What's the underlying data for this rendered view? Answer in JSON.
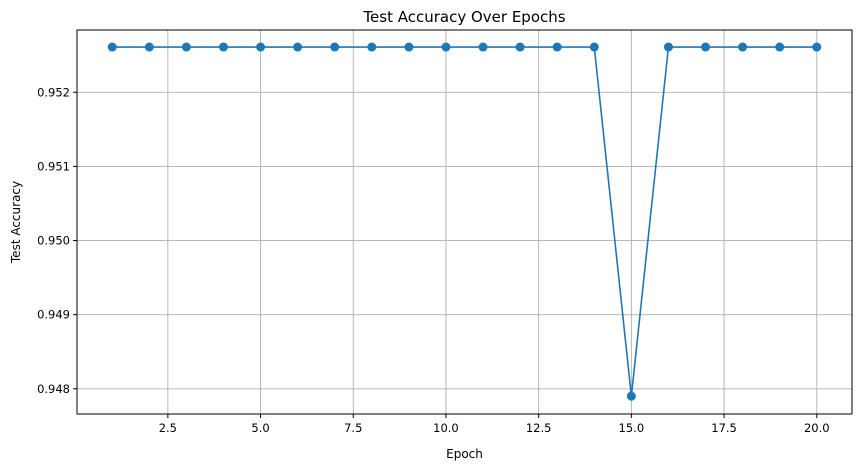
{
  "chart_data": {
    "type": "line",
    "title": "Test Accuracy Over Epochs",
    "xlabel": "Epoch",
    "ylabel": "Test Accuracy",
    "xlim": [
      0.05,
      20.95
    ],
    "ylim": [
      0.94766,
      0.95284
    ],
    "xticks": [
      2.5,
      5.0,
      7.5,
      10.0,
      12.5,
      15.0,
      17.5,
      20.0
    ],
    "xtick_labels": [
      "2.5",
      "5.0",
      "7.5",
      "10.0",
      "12.5",
      "15.0",
      "17.5",
      "20.0"
    ],
    "yticks": [
      0.948,
      0.949,
      0.95,
      0.951,
      0.952
    ],
    "ytick_labels": [
      "0.948",
      "0.949",
      "0.950",
      "0.951",
      "0.952"
    ],
    "grid": true,
    "series": [
      {
        "color": "#1f77b4",
        "marker": "circle",
        "x": [
          1,
          2,
          3,
          4,
          5,
          6,
          7,
          8,
          9,
          10,
          11,
          12,
          13,
          14,
          15,
          16,
          17,
          18,
          19,
          20
        ],
        "y": [
          0.95261,
          0.95261,
          0.95261,
          0.95261,
          0.95261,
          0.95261,
          0.95261,
          0.95261,
          0.95261,
          0.95261,
          0.95261,
          0.95261,
          0.95261,
          0.95261,
          0.9479,
          0.95261,
          0.95261,
          0.95261,
          0.95261,
          0.95261
        ]
      }
    ]
  }
}
